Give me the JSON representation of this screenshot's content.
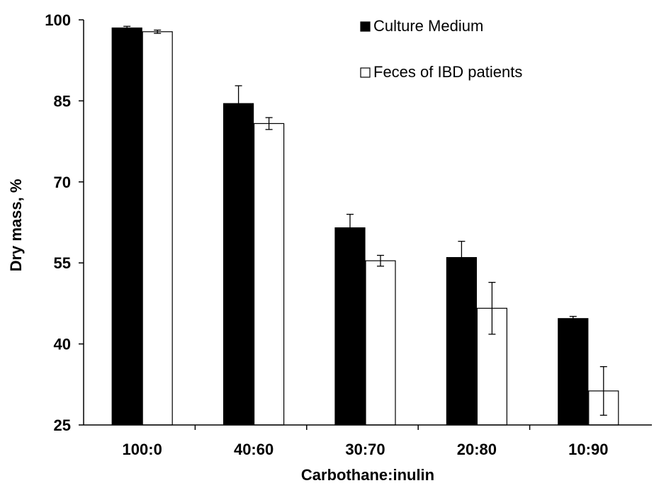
{
  "chart_data": {
    "type": "bar",
    "xlabel": "Carbothane:inulin",
    "ylabel": "Dry mass, %",
    "ylim": [
      25,
      100
    ],
    "yticks": [
      25,
      40,
      55,
      70,
      85,
      100
    ],
    "categories": [
      "100:0",
      "40:60",
      "30:70",
      "20:80",
      "10:90"
    ],
    "legend_position": "top-right",
    "series": [
      {
        "name": "Culture Medium",
        "color": "#000000",
        "values": [
          98.5,
          84.5,
          61.5,
          56.0,
          44.7
        ],
        "errors": [
          0.3,
          3.3,
          2.5,
          3.0,
          0.4
        ]
      },
      {
        "name": "Feces of IBD patients",
        "color": "#ffffff",
        "values": [
          97.8,
          80.8,
          55.4,
          46.6,
          31.3
        ],
        "errors": [
          0.3,
          1.1,
          1.0,
          4.8,
          4.5
        ]
      }
    ]
  }
}
